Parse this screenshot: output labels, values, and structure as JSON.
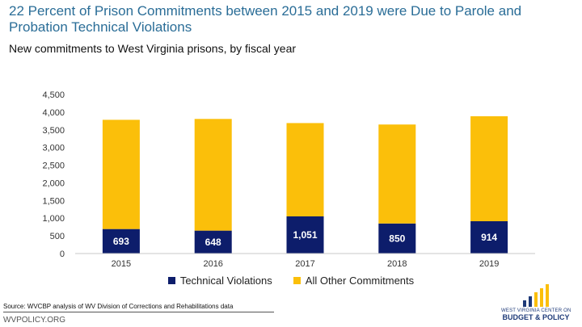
{
  "header": {
    "title": "22 Percent of Prison Commitments between 2015 and 2019 were Due to Parole and Probation Technical Violations",
    "subtitle": "New commitments to West Virginia prisons, by fiscal year"
  },
  "chart_data": {
    "type": "bar",
    "stacked": true,
    "categories": [
      "2015",
      "2016",
      "2017",
      "2018",
      "2019"
    ],
    "series": [
      {
        "name": "Technical Violations",
        "color": "#0d1d6b",
        "values": [
          693,
          648,
          1051,
          850,
          914
        ],
        "labels": [
          "693",
          "648",
          "1,051",
          "850",
          "914"
        ]
      },
      {
        "name": "All Other Commitments",
        "color": "#fbbf0a",
        "values": [
          3090,
          3160,
          2640,
          2800,
          2970
        ]
      }
    ],
    "ylim": [
      0,
      4500
    ],
    "yticks": [
      "0",
      "500",
      "1,000",
      "1,500",
      "2,000",
      "2,500",
      "3,000",
      "3,500",
      "4,000",
      "4,500"
    ],
    "grid": false,
    "legend_position": "bottom"
  },
  "footer": {
    "source": "Source: WVCBP analysis of WV Division of Corrections and Rehabilitations data",
    "site": "WVPOLICY.ORG",
    "logo_line1": "WEST VIRGINIA CENTER ON",
    "logo_line2": "BUDGET & POLICY"
  }
}
